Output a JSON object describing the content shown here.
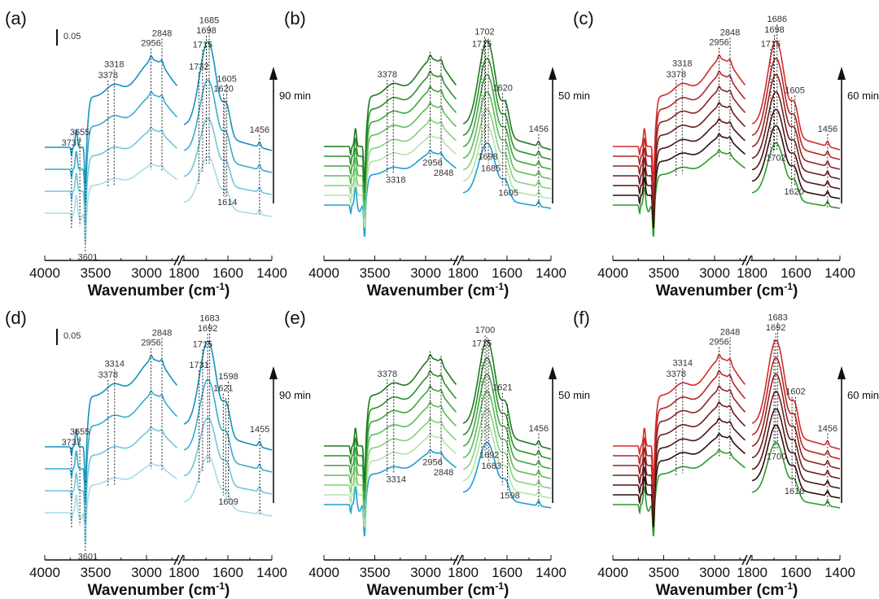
{
  "chart_data": [
    {
      "id": "a",
      "type": "line",
      "title": "(a)",
      "xlabel": "Wavenumber (cm-1)",
      "xlabel_main": "Wavenumber (cm",
      "xlabel_sup": "-1",
      "xlabel_end": ")",
      "xticks_left": [
        4000,
        3500,
        3000
      ],
      "xticks_right": [
        1800,
        1600,
        1400
      ],
      "xlim_left": [
        4000,
        2700
      ],
      "xlim_right": [
        1800,
        1400
      ],
      "scale_bar": "0.05",
      "time_label": "90 min",
      "series_count": 4,
      "series_colors": [
        "#a6dbe8",
        "#72c5dc",
        "#37acd0",
        "#1593bd"
      ],
      "series_intensity": [
        0.55,
        0.7,
        0.85,
        1.0
      ],
      "peaks_above": [
        3737,
        3655,
        3378,
        3318,
        2956,
        2848,
        1732,
        1715,
        1698,
        1685,
        1620,
        1605,
        1456
      ],
      "peaks_below": [
        3601,
        1614
      ]
    },
    {
      "id": "b",
      "type": "line",
      "title": "(b)",
      "xlabel_main": "Wavenumber (cm",
      "xlabel_sup": "-1",
      "xlabel_end": ")",
      "xticks_left": [
        4000,
        3500,
        3000
      ],
      "xticks_right": [
        1800,
        1600,
        1400
      ],
      "xlim_left": [
        4000,
        2700
      ],
      "xlim_right": [
        1800,
        1400
      ],
      "scale_bar": "",
      "time_label": "50 min",
      "series_count": 7,
      "series_colors": [
        "#1ea0d2",
        "#b2e4a8",
        "#86d07c",
        "#5fbc5a",
        "#40a640",
        "#2c8f2c",
        "#1e7a1e"
      ],
      "series_intensity": [
        0.6,
        0.67,
        0.73,
        0.8,
        0.87,
        0.93,
        1.0
      ],
      "peaks_above": [
        3378,
        1715,
        1702,
        1620,
        1456
      ],
      "peaks_below": [
        3318,
        2956,
        2848,
        1698,
        1685,
        1605
      ]
    },
    {
      "id": "c",
      "type": "line",
      "title": "(c)",
      "xlabel_main": "Wavenumber (cm",
      "xlabel_sup": "-1",
      "xlabel_end": ")",
      "xticks_left": [
        4000,
        3500,
        3000
      ],
      "xticks_right": [
        1800,
        1600,
        1400
      ],
      "xlim_left": [
        4000,
        2700
      ],
      "xlim_right": [
        1800,
        1400
      ],
      "scale_bar": "",
      "time_label": "60 min",
      "series_count": 7,
      "series_colors": [
        "#2a9a2a",
        "#2e0c0c",
        "#4e1414",
        "#6e1c1c",
        "#922222",
        "#b42626",
        "#d42a2a"
      ],
      "series_intensity": [
        0.6,
        0.67,
        0.73,
        0.8,
        0.87,
        0.93,
        1.0
      ],
      "peaks_above": [
        3378,
        3318,
        2956,
        2848,
        1715,
        1698,
        1686,
        1605,
        1456
      ],
      "peaks_below": [
        1702,
        1620
      ]
    },
    {
      "id": "d",
      "type": "line",
      "title": "(d)",
      "xlabel_main": "Wavenumber (cm",
      "xlabel_sup": "-1",
      "xlabel_end": ")",
      "xticks_left": [
        4000,
        3500,
        3000
      ],
      "xticks_right": [
        1800,
        1600,
        1400
      ],
      "xlim_left": [
        4000,
        2700
      ],
      "xlim_right": [
        1800,
        1400
      ],
      "scale_bar": "0.05",
      "time_label": "90 min",
      "series_count": 4,
      "series_colors": [
        "#a6dbe8",
        "#72c5dc",
        "#37acd0",
        "#1593bd"
      ],
      "series_intensity": [
        0.55,
        0.7,
        0.85,
        1.0
      ],
      "peaks_above": [
        3737,
        3655,
        3378,
        3314,
        2956,
        2848,
        1731,
        1715,
        1692,
        1683,
        1621,
        1598,
        1455
      ],
      "peaks_below": [
        3601,
        1609
      ]
    },
    {
      "id": "e",
      "type": "line",
      "title": "(e)",
      "xlabel_main": "Wavenumber (cm",
      "xlabel_sup": "-1",
      "xlabel_end": ")",
      "xticks_left": [
        4000,
        3500,
        3000
      ],
      "xticks_right": [
        1800,
        1600,
        1400
      ],
      "xlim_left": [
        4000,
        2700
      ],
      "xlim_right": [
        1800,
        1400
      ],
      "scale_bar": "",
      "time_label": "50 min",
      "series_count": 7,
      "series_colors": [
        "#1ea0d2",
        "#b2e4a8",
        "#86d07c",
        "#5fbc5a",
        "#40a640",
        "#2c8f2c",
        "#1e7a1e"
      ],
      "series_intensity": [
        0.6,
        0.67,
        0.73,
        0.8,
        0.87,
        0.93,
        1.0
      ],
      "peaks_above": [
        3378,
        1715,
        1700,
        1621,
        1456
      ],
      "peaks_below": [
        3314,
        2956,
        2848,
        1692,
        1683,
        1598
      ]
    },
    {
      "id": "f",
      "type": "line",
      "title": "(f)",
      "xlabel_main": "Wavenumber (cm",
      "xlabel_sup": "-1",
      "xlabel_end": ")",
      "xticks_left": [
        4000,
        3500,
        3000
      ],
      "xticks_right": [
        1800,
        1600,
        1400
      ],
      "xlim_left": [
        4000,
        2700
      ],
      "xlim_right": [
        1800,
        1400
      ],
      "scale_bar": "",
      "time_label": "60 min",
      "series_count": 7,
      "series_colors": [
        "#2a9a2a",
        "#2e0c0c",
        "#4e1414",
        "#6e1c1c",
        "#922222",
        "#b42626",
        "#d42a2a"
      ],
      "series_intensity": [
        0.6,
        0.67,
        0.73,
        0.8,
        0.87,
        0.93,
        1.0
      ],
      "peaks_above": [
        3378,
        3314,
        2956,
        2848,
        1692,
        1683,
        1602,
        1456
      ],
      "peaks_below": [
        1700,
        1618
      ]
    }
  ]
}
